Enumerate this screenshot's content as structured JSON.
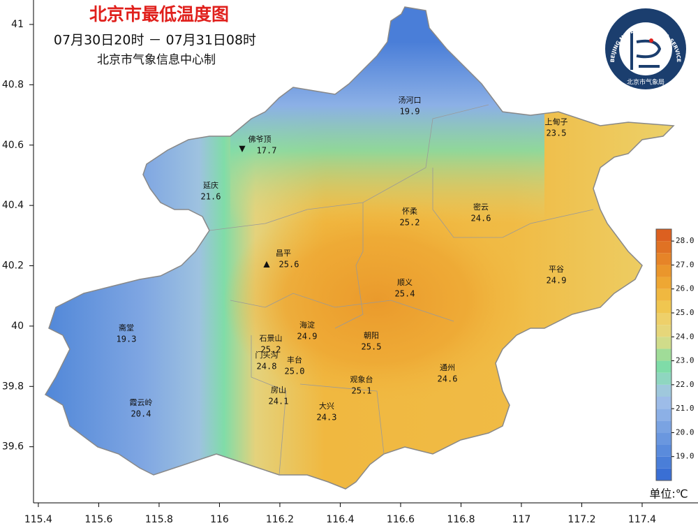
{
  "map": {
    "title": "北京市最低温度图",
    "subtitle": "07月30日20时 － 07月31日08时",
    "credit": "北京市气象信息中心制",
    "unit": "单位:℃",
    "logo": {
      "ring": "BEIJING METEOROLOGICAL SERVICE",
      "name": "北京市气象局"
    },
    "xlim": [
      115.384,
      117.585
    ],
    "ylim": [
      39.414,
      41.081
    ],
    "xticks": [
      115.4,
      115.6,
      115.8,
      116,
      116.2,
      116.4,
      116.6,
      116.8,
      117,
      117.2,
      117.4
    ],
    "yticks": [
      39.6,
      39.8,
      40,
      40.2,
      40.4,
      40.6,
      40.8,
      41
    ],
    "colorbar": {
      "lim": [
        18,
        28.5
      ],
      "ticks": [
        {
          "value": 19,
          "label": "19.0"
        },
        {
          "value": 20,
          "label": "20.0"
        },
        {
          "value": 21,
          "label": "21.0"
        },
        {
          "value": 22,
          "label": "22.0"
        },
        {
          "value": 23,
          "label": "23.0"
        },
        {
          "value": 24,
          "label": "24.0"
        },
        {
          "value": 25,
          "label": "25.0"
        },
        {
          "value": 26,
          "label": "26.0"
        },
        {
          "value": 27,
          "label": "27.0"
        },
        {
          "value": 28,
          "label": "28.0"
        }
      ],
      "colors": [
        "#3a6fd4",
        "#4a7ed8",
        "#5a8bdc",
        "#6a97df",
        "#7aa3e2",
        "#8cb0e6",
        "#9dbce8",
        "#9fc8dc",
        "#8fd6c0",
        "#7fdca8",
        "#a0dc98",
        "#d0dc8a",
        "#e6d67a",
        "#eed06a",
        "#f0c650",
        "#f0b840",
        "#eea733",
        "#ea962c",
        "#e68428",
        "#e07224",
        "#dc6020"
      ]
    },
    "stations": [
      {
        "name": "汤河口",
        "value": "19.9"
      },
      {
        "name": "上甸子",
        "value": "23.5"
      },
      {
        "name": "佛爷顶",
        "value": "17.7"
      },
      {
        "name": "延庆",
        "value": "21.6"
      },
      {
        "name": "怀柔",
        "value": "25.2"
      },
      {
        "name": "密云",
        "value": "24.6"
      },
      {
        "name": "昌平",
        "value": "25.6"
      },
      {
        "name": "平谷",
        "value": "24.9"
      },
      {
        "name": "顺义",
        "value": "25.4"
      },
      {
        "name": "海淀",
        "value": "24.9"
      },
      {
        "name": "朝阳",
        "value": "25.5"
      },
      {
        "name": "斋堂",
        "value": "19.3"
      },
      {
        "name": "石景山",
        "value": "25.2"
      },
      {
        "name": "门头沟",
        "value": "24.8"
      },
      {
        "name": "丰台",
        "value": "25.0"
      },
      {
        "name": "通州",
        "value": "24.6"
      },
      {
        "name": "观象台",
        "value": "25.1"
      },
      {
        "name": "房山",
        "value": "24.1"
      },
      {
        "name": "大兴",
        "value": "24.3"
      },
      {
        "name": "霞云岭",
        "value": "20.4"
      }
    ]
  }
}
